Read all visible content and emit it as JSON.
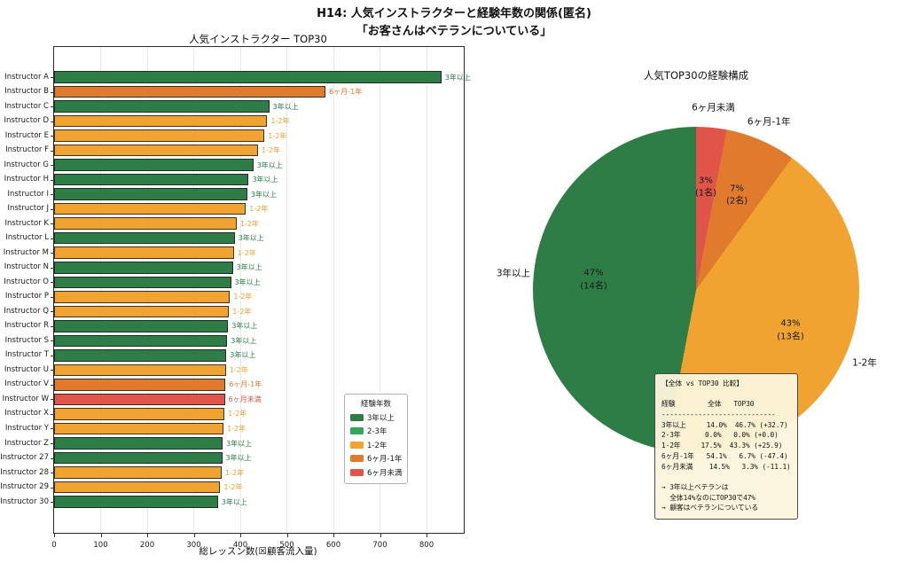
{
  "figure": {
    "title": "H14: 人気インストラクターと経験年数の関係(匿名)\n「お客さんはベテランについている」"
  },
  "palette": {
    "3年以上": "#2e7d46",
    "2-3年": "#33a65c",
    "1-2年": "#f0a330",
    "6ヶ月-1年": "#e07b2d",
    "6ヶ月未満": "#e0544a"
  },
  "chart_data": [
    {
      "type": "bar",
      "orientation": "horizontal",
      "title": "人気インストラクター TOP30",
      "xlabel": "総レッスン数(☒顧客流入量)",
      "xlim": [
        0,
        880
      ],
      "xticks": [
        0,
        100,
        200,
        300,
        400,
        500,
        600,
        700,
        800
      ],
      "grid": true,
      "legend": {
        "title": "経験年数",
        "entries": [
          "3年以上",
          "2-3年",
          "1-2年",
          "6ヶ月-1年",
          "6ヶ月未満"
        ],
        "position": "lower right"
      },
      "bars": [
        {
          "label": "Instructor A",
          "value": 832,
          "category": "3年以上"
        },
        {
          "label": "Instructor B",
          "value": 583,
          "category": "6ヶ月-1年"
        },
        {
          "label": "Instructor C",
          "value": 462,
          "category": "3年以上"
        },
        {
          "label": "Instructor D",
          "value": 458,
          "category": "1-2年"
        },
        {
          "label": "Instructor E",
          "value": 452,
          "category": "1-2年"
        },
        {
          "label": "Instructor F",
          "value": 438,
          "category": "1-2年"
        },
        {
          "label": "Instructor G",
          "value": 428,
          "category": "3年以上"
        },
        {
          "label": "Instructor H",
          "value": 418,
          "category": "3年以上"
        },
        {
          "label": "Instructor I",
          "value": 415,
          "category": "3年以上"
        },
        {
          "label": "Instructor J",
          "value": 412,
          "category": "1-2年"
        },
        {
          "label": "Instructor K",
          "value": 392,
          "category": "1-2年"
        },
        {
          "label": "Instructor L",
          "value": 388,
          "category": "3年以上"
        },
        {
          "label": "Instructor M",
          "value": 386,
          "category": "1-2年"
        },
        {
          "label": "Instructor N",
          "value": 384,
          "category": "3年以上"
        },
        {
          "label": "Instructor O",
          "value": 380,
          "category": "3年以上"
        },
        {
          "label": "Instructor P",
          "value": 378,
          "category": "1-2年"
        },
        {
          "label": "Instructor Q",
          "value": 376,
          "category": "1-2年"
        },
        {
          "label": "Instructor R",
          "value": 374,
          "category": "3年以上"
        },
        {
          "label": "Instructor S",
          "value": 372,
          "category": "3年以上"
        },
        {
          "label": "Instructor T",
          "value": 370,
          "category": "3年以上"
        },
        {
          "label": "Instructor U",
          "value": 369,
          "category": "1-2年"
        },
        {
          "label": "Instructor V",
          "value": 368,
          "category": "6ヶ月-1年"
        },
        {
          "label": "Instructor W",
          "value": 367,
          "category": "6ヶ月未満"
        },
        {
          "label": "Instructor X",
          "value": 366,
          "category": "1-2年"
        },
        {
          "label": "Instructor Y",
          "value": 364,
          "category": "1-2年"
        },
        {
          "label": "Instructor Z",
          "value": 362,
          "category": "3年以上"
        },
        {
          "label": "Instructor 27",
          "value": 361,
          "category": "3年以上"
        },
        {
          "label": "Instructor 28",
          "value": 360,
          "category": "1-2年"
        },
        {
          "label": "Instructor 29",
          "value": 357,
          "category": "1-2年"
        },
        {
          "label": "Instructor 30",
          "value": 352,
          "category": "3年以上"
        }
      ]
    },
    {
      "type": "pie",
      "title": "人気TOP30の経験構成",
      "start_at_top_clockwise": true,
      "slices": [
        {
          "label": "6ヶ月未満",
          "pct": 3,
          "count": "1名"
        },
        {
          "label": "6ヶ月-1年",
          "pct": 7,
          "count": "2名"
        },
        {
          "label": "1-2年",
          "pct": 43,
          "count": "13名"
        },
        {
          "label": "3年以上",
          "pct": 47,
          "count": "14名"
        }
      ]
    }
  ],
  "comparison_box": {
    "lines": [
      "【全体 vs TOP30 比較】",
      "",
      "経験        全体   TOP30",
      "----------------------------",
      "3年以上     14.0%  46.7% (+32.7)",
      "2-3年      0.0%   0.0% (+0.0)",
      "1-2年     17.5%  43.3% (+25.9)",
      "6ヶ月-1年   54.1%   6.7% (-47.4)",
      "6ヶ月未満    14.5%   3.3% (-11.1)",
      "",
      "→ 3年以上ベテランは",
      "  全体14%なのにTOP30で47%",
      "→ 顧客はベテランについている"
    ]
  }
}
